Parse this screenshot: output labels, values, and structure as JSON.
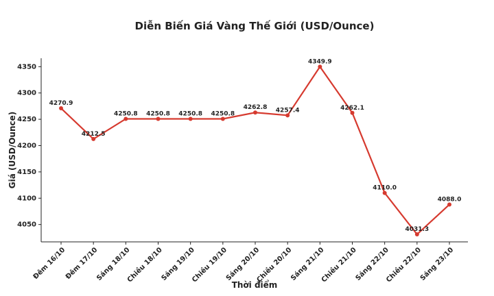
{
  "chart_data": {
    "type": "line",
    "title": "Diễn Biến Giá Vàng Thế Giới (USD/Ounce)",
    "x_label": "Thời điểm",
    "y_label": "Giá (USD/Ounce)",
    "categories": [
      "Đêm 16/10",
      "Đêm 17/10",
      "Sáng 18/10",
      "Chiều 18/10",
      "Sáng 19/10",
      "Chiều 19/10",
      "Sáng 20/10",
      "Chiều 20/10",
      "Sáng 21/10",
      "Chiều 21/10",
      "Sáng 22/10",
      "Chiều 22/10",
      "Sáng 23/10"
    ],
    "values": [
      4270.9,
      4212.5,
      4250.8,
      4250.8,
      4250.8,
      4250.8,
      4262.8,
      4257.4,
      4349.9,
      4262.1,
      4110.0,
      4031.3,
      4088.0
    ],
    "value_labels": [
      "4270.9",
      "4212.5",
      "4250.8",
      "4250.8",
      "4250.8",
      "4250.8",
      "4262.8",
      "4257.4",
      "4349.9",
      "4262.1",
      "4110.0",
      "4031.3",
      "4088.0"
    ],
    "color": "#d63a2f",
    "ylim": [
      4017,
      4366
    ],
    "yticks": [
      4050,
      4100,
      4150,
      4200,
      4250,
      4300,
      4350
    ]
  }
}
